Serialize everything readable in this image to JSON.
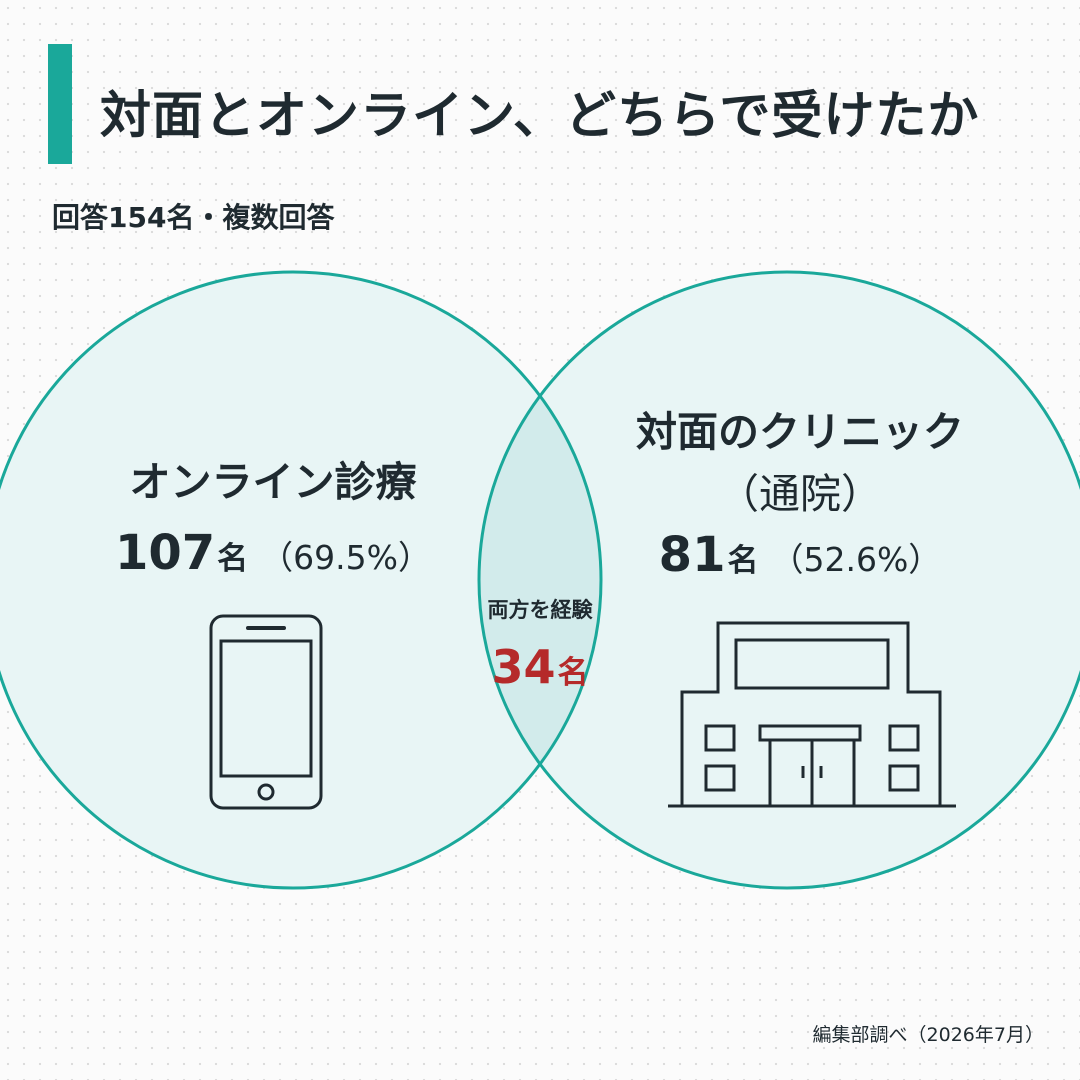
{
  "header": {
    "title": "対面とオンライン、どちらで受けたか",
    "subtitle": "回答154名・複数回答"
  },
  "colors": {
    "accent": "#1aa89a",
    "circle_stroke": "#1aa89a",
    "circle_fill": "#e8f5f5",
    "overlap_fill": "#d2ebeb",
    "highlight": "#b52a2a",
    "text": "#1f2a30"
  },
  "venn": {
    "left": {
      "label": "オンライン診療",
      "count": "107",
      "unit": "名",
      "percent": "（69.5%）",
      "icon": "smartphone-icon"
    },
    "right": {
      "label_line1": "対面のクリニック",
      "label_line2": "（通院）",
      "count": "81",
      "unit": "名",
      "percent": "（52.6%）",
      "icon": "clinic-building-icon"
    },
    "overlap": {
      "label": "両方を経験",
      "count": "34",
      "unit": "名"
    }
  },
  "footer": {
    "source": "編集部調べ（2026年7月）"
  }
}
